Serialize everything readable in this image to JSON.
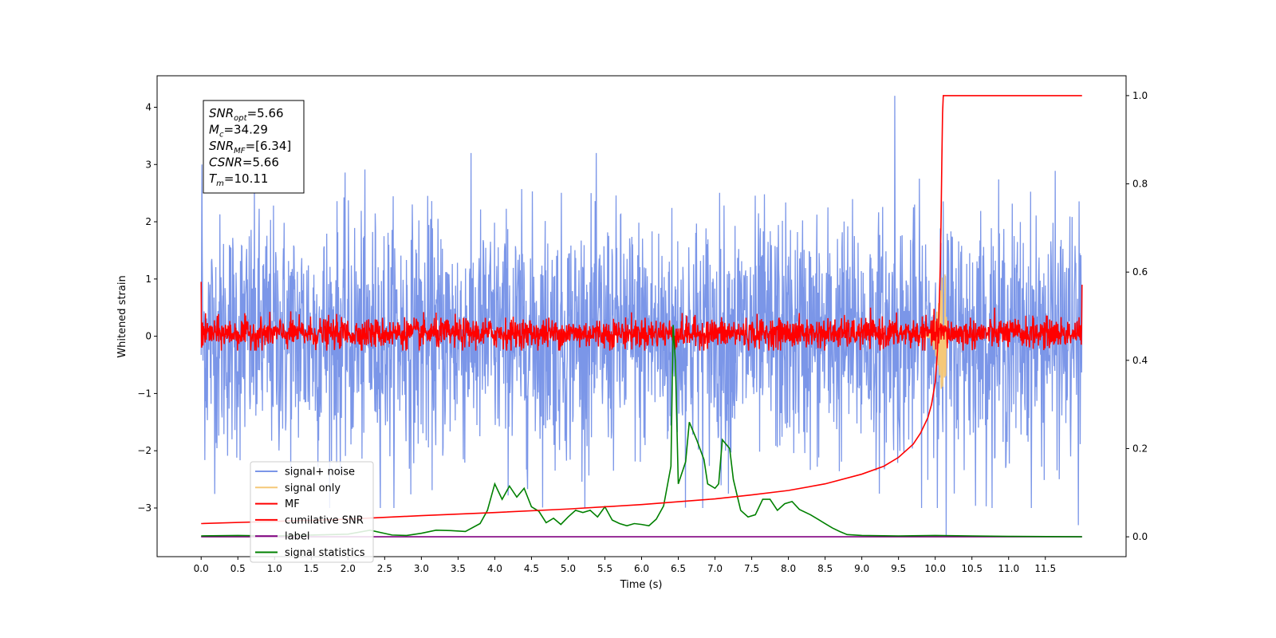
{
  "chart_data": {
    "type": "line",
    "xlabel": "Time (s)",
    "ylabel_left": "Whitened strain",
    "ylabel_right": "",
    "xlim": [
      -0.6,
      12.6
    ],
    "ylim_left": [
      -3.85,
      4.55
    ],
    "ylim_right": [
      -0.045,
      1.045
    ],
    "xticks": [
      "0.0",
      "0.5",
      "1.0",
      "1.5",
      "2.0",
      "2.5",
      "3.0",
      "3.5",
      "4.0",
      "4.5",
      "5.0",
      "5.5",
      "6.0",
      "6.5",
      "7.0",
      "7.5",
      "8.0",
      "8.5",
      "9.0",
      "9.5",
      "10.0",
      "10.5",
      "11.0",
      "11.5"
    ],
    "yticks_left": [
      "−3",
      "−2",
      "−1",
      "0",
      "1",
      "2",
      "3",
      "4"
    ],
    "yticks_right": [
      "0.0",
      "0.2",
      "0.4",
      "0.6",
      "0.8",
      "1.0"
    ],
    "grid": false,
    "legend_position": "lower-left",
    "info_box": {
      "lines": [
        {
          "name": "SNR",
          "sub": "opt",
          "value": "=5.66"
        },
        {
          "name": "M",
          "sub": "c",
          "value": "=34.29"
        },
        {
          "name": "SNR",
          "sub": "MF",
          "value": "=[6.34]"
        },
        {
          "name": "CSNR",
          "sub": "",
          "value": "=5.66"
        },
        {
          "name": "T",
          "sub": "m",
          "value": "=10.11"
        }
      ]
    },
    "series": [
      {
        "name": "signal+ noise",
        "color": "#7b96e8",
        "axis": "left",
        "description_range": [
          -3.2,
          4.2
        ],
        "notable_peaks": [
          [
            0.01,
            3.0
          ],
          [
            9.45,
            4.2
          ],
          [
            10.15,
            -3.5
          ],
          [
            11.95,
            -3.3
          ]
        ]
      },
      {
        "name": "signal only",
        "color": "#f5c878",
        "axis": "left",
        "points": [
          [
            9.9,
            0.0
          ],
          [
            10.0,
            0.3
          ],
          [
            10.05,
            0.6
          ],
          [
            10.1,
            1.1
          ],
          [
            10.13,
            -1.2
          ],
          [
            10.16,
            0.0
          ]
        ]
      },
      {
        "name": "MF",
        "color": "#ff0000",
        "axis": "left",
        "description_range": [
          -0.25,
          0.35
        ]
      },
      {
        "name": "cumilative SNR",
        "color": "#ff0000",
        "axis": "right",
        "points": [
          [
            0.0,
            0.03
          ],
          [
            1.0,
            0.035
          ],
          [
            2.0,
            0.04
          ],
          [
            3.0,
            0.048
          ],
          [
            4.0,
            0.055
          ],
          [
            5.0,
            0.063
          ],
          [
            6.0,
            0.073
          ],
          [
            7.0,
            0.086
          ],
          [
            7.5,
            0.095
          ],
          [
            8.0,
            0.105
          ],
          [
            8.5,
            0.12
          ],
          [
            9.0,
            0.142
          ],
          [
            9.3,
            0.16
          ],
          [
            9.5,
            0.18
          ],
          [
            9.7,
            0.21
          ],
          [
            9.8,
            0.235
          ],
          [
            9.9,
            0.27
          ],
          [
            9.95,
            0.3
          ],
          [
            10.0,
            0.35
          ],
          [
            10.03,
            0.42
          ],
          [
            10.05,
            0.5
          ],
          [
            10.07,
            0.62
          ],
          [
            10.08,
            0.72
          ],
          [
            10.09,
            0.85
          ],
          [
            10.1,
            0.96
          ],
          [
            10.11,
            1.0
          ],
          [
            12.0,
            1.0
          ]
        ]
      },
      {
        "name": "label",
        "color": "#800080",
        "axis": "right",
        "points": [
          [
            0.0,
            0.0
          ],
          [
            12.0,
            0.0
          ]
        ]
      },
      {
        "name": "signal statistics",
        "color": "#008000",
        "axis": "right",
        "points": [
          [
            0.0,
            0.002
          ],
          [
            0.5,
            0.003
          ],
          [
            1.0,
            0.002
          ],
          [
            1.5,
            0.004
          ],
          [
            2.0,
            0.006
          ],
          [
            2.3,
            0.015
          ],
          [
            2.6,
            0.004
          ],
          [
            2.8,
            0.003
          ],
          [
            3.0,
            0.008
          ],
          [
            3.2,
            0.015
          ],
          [
            3.4,
            0.014
          ],
          [
            3.6,
            0.012
          ],
          [
            3.8,
            0.03
          ],
          [
            3.9,
            0.06
          ],
          [
            4.0,
            0.12
          ],
          [
            4.1,
            0.085
          ],
          [
            4.2,
            0.115
          ],
          [
            4.3,
            0.09
          ],
          [
            4.4,
            0.11
          ],
          [
            4.5,
            0.068
          ],
          [
            4.6,
            0.058
          ],
          [
            4.7,
            0.032
          ],
          [
            4.8,
            0.042
          ],
          [
            4.9,
            0.028
          ],
          [
            5.0,
            0.045
          ],
          [
            5.1,
            0.06
          ],
          [
            5.2,
            0.055
          ],
          [
            5.3,
            0.06
          ],
          [
            5.4,
            0.045
          ],
          [
            5.5,
            0.068
          ],
          [
            5.6,
            0.038
          ],
          [
            5.7,
            0.03
          ],
          [
            5.8,
            0.025
          ],
          [
            5.9,
            0.03
          ],
          [
            6.0,
            0.028
          ],
          [
            6.1,
            0.025
          ],
          [
            6.2,
            0.04
          ],
          [
            6.3,
            0.07
          ],
          [
            6.4,
            0.16
          ],
          [
            6.43,
            0.48
          ],
          [
            6.46,
            0.4
          ],
          [
            6.5,
            0.12
          ],
          [
            6.6,
            0.17
          ],
          [
            6.65,
            0.26
          ],
          [
            6.75,
            0.22
          ],
          [
            6.85,
            0.175
          ],
          [
            6.9,
            0.12
          ],
          [
            7.0,
            0.11
          ],
          [
            7.05,
            0.12
          ],
          [
            7.1,
            0.22
          ],
          [
            7.2,
            0.2
          ],
          [
            7.25,
            0.13
          ],
          [
            7.35,
            0.06
          ],
          [
            7.45,
            0.045
          ],
          [
            7.55,
            0.05
          ],
          [
            7.65,
            0.085
          ],
          [
            7.75,
            0.085
          ],
          [
            7.85,
            0.06
          ],
          [
            7.95,
            0.075
          ],
          [
            8.05,
            0.08
          ],
          [
            8.15,
            0.062
          ],
          [
            8.3,
            0.05
          ],
          [
            8.4,
            0.04
          ],
          [
            8.5,
            0.03
          ],
          [
            8.6,
            0.02
          ],
          [
            8.7,
            0.012
          ],
          [
            8.8,
            0.005
          ],
          [
            9.0,
            0.003
          ],
          [
            9.5,
            0.002
          ],
          [
            10.0,
            0.003
          ],
          [
            10.5,
            0.002
          ],
          [
            11.0,
            0.001
          ],
          [
            12.0,
            0.0
          ]
        ]
      }
    ]
  }
}
